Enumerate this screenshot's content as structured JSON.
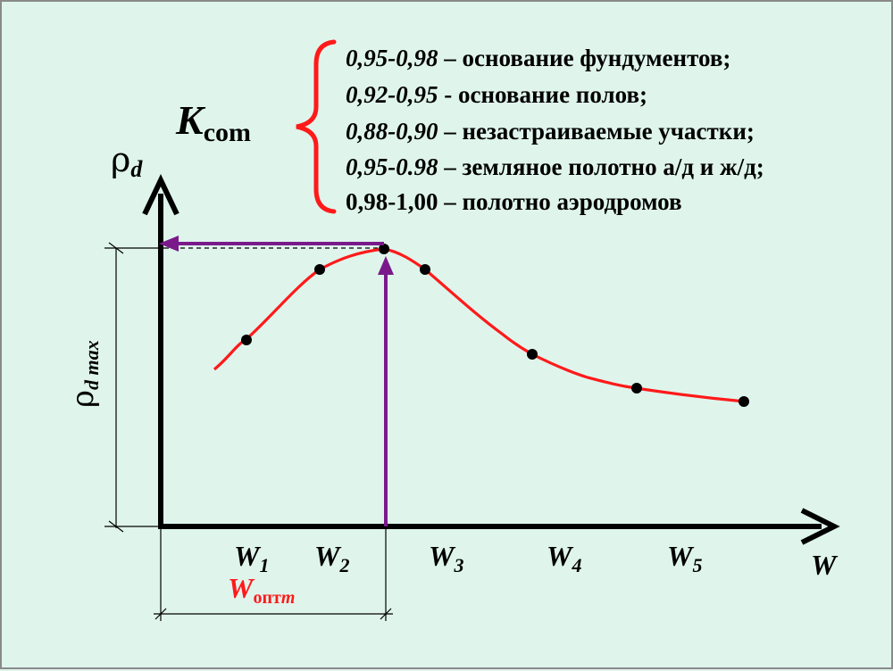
{
  "coefficient": {
    "base": "K",
    "sub": "com"
  },
  "y_axis": {
    "symbol": "ρ",
    "sub": "d"
  },
  "x_axis": {
    "symbol": "W"
  },
  "rho_max": {
    "symbol": "ρ",
    "sub": "d max"
  },
  "w_opt": {
    "symbol": "W",
    "sub_regular": "опт",
    "sub_italic": "m"
  },
  "legend": [
    {
      "range": "0,95-0,98",
      "sep": " – ",
      "text": "основание фундументов;"
    },
    {
      "range": "0,92-0,95",
      "sep": " - ",
      "text": "основание полов;"
    },
    {
      "range": "0,88-0,90",
      "sep": " – ",
      "text": "незастраиваемые  участки;"
    },
    {
      "range": "0,95-0.98",
      "sep": " – ",
      "text": "земляное полотно а/д и ж/д;"
    },
    {
      "range": "0,98-1,00",
      "sep": " – ",
      "text": "полотно аэродромов"
    }
  ],
  "w_labels": [
    {
      "base": "W",
      "sub": "1"
    },
    {
      "base": "W",
      "sub": "2"
    },
    {
      "base": "W",
      "sub": "3"
    },
    {
      "base": "W",
      "sub": "4"
    },
    {
      "base": "W",
      "sub": "5"
    }
  ],
  "colors": {
    "curve": "#ff1a1a",
    "arrow": "#7a1a8a",
    "axis": "#000000",
    "brace": "#ff1a1a",
    "w_opt": "#ff1a1a",
    "background": "#dff5ec"
  }
}
